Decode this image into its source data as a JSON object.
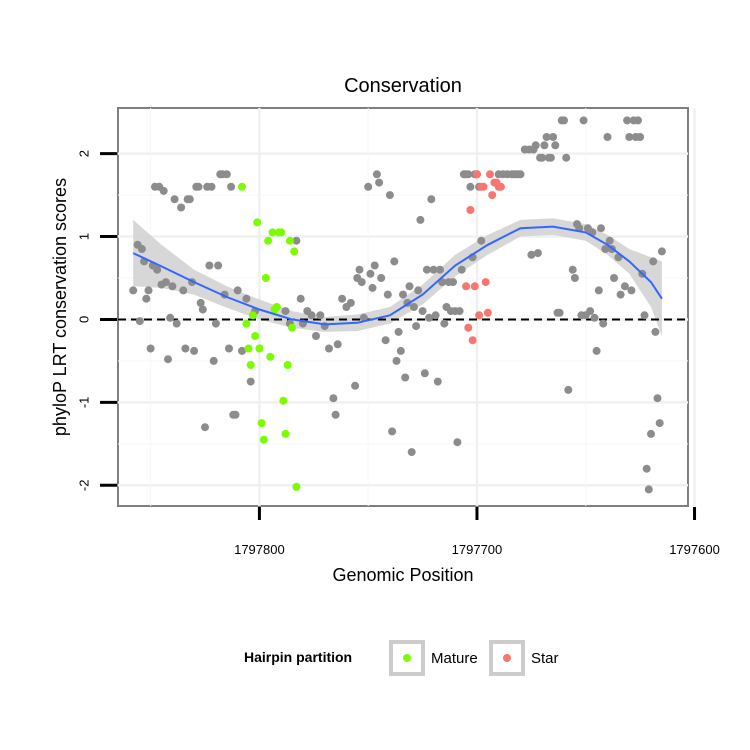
{
  "chart_data": {
    "type": "scatter",
    "title": "Conservation",
    "xlabel": "Genomic Position",
    "ylabel": "phyloP LRT conservation scores",
    "x_reversed": true,
    "xlim": [
      1797865,
      1797603
    ],
    "ylim": [
      -2.25,
      2.55
    ],
    "x_ticks": [
      1797800,
      1797700,
      1797600
    ],
    "x_tick_labels": [
      "1797800",
      "1797700",
      "1797600"
    ],
    "y_ticks": [
      -2,
      -1,
      0,
      1,
      2
    ],
    "y_tick_labels": [
      "-2",
      "-1",
      "0",
      "1",
      "2"
    ],
    "grid": true,
    "reference_line": {
      "y": 0,
      "style": "dashed"
    },
    "legend": {
      "title": "Hairpin partition",
      "placement": "bottom",
      "entries": [
        {
          "label": "Mature",
          "color": "#7cfc00"
        },
        {
          "label": "Star",
          "color": "#f8766d"
        }
      ]
    },
    "colors": {
      "other": "#8c8c8c",
      "Mature": "#7cfc00",
      "Star": "#f8766d",
      "smooth": "#3366ff",
      "band": "#d3d3d3"
    },
    "series": [
      {
        "name": "",
        "points": [
          [
            1797858,
            0.35
          ],
          [
            1797856,
            0.9
          ],
          [
            1797855,
            -0.02
          ],
          [
            1797854,
            0.85
          ],
          [
            1797853,
            0.7
          ],
          [
            1797852,
            0.25
          ],
          [
            1797851,
            0.35
          ],
          [
            1797850,
            -0.35
          ],
          [
            1797849,
            0.65
          ],
          [
            1797848,
            1.6
          ],
          [
            1797847,
            0.6
          ],
          [
            1797846,
            1.6
          ],
          [
            1797845,
            0.42
          ],
          [
            1797844,
            1.55
          ],
          [
            1797843,
            0.45
          ],
          [
            1797842,
            -0.48
          ],
          [
            1797841,
            0.02
          ],
          [
            1797840,
            0.4
          ],
          [
            1797839,
            1.45
          ],
          [
            1797838,
            -0.05
          ],
          [
            1797836,
            1.35
          ],
          [
            1797835,
            0.35
          ],
          [
            1797834,
            -0.35
          ],
          [
            1797833,
            1.45
          ],
          [
            1797832,
            1.45
          ],
          [
            1797831,
            0.45
          ],
          [
            1797830,
            -0.38
          ],
          [
            1797829,
            1.6
          ],
          [
            1797828,
            1.6
          ],
          [
            1797827,
            0.2
          ],
          [
            1797826,
            0.12
          ],
          [
            1797825,
            -1.3
          ],
          [
            1797824,
            1.6
          ],
          [
            1797823,
            0.65
          ],
          [
            1797822,
            1.6
          ],
          [
            1797821,
            -0.5
          ],
          [
            1797820,
            -0.05
          ],
          [
            1797819,
            0.65
          ],
          [
            1797818,
            1.75
          ],
          [
            1797817,
            1.75
          ],
          [
            1797816,
            0.3
          ],
          [
            1797815,
            1.75
          ],
          [
            1797814,
            -0.35
          ],
          [
            1797813,
            1.6
          ],
          [
            1797812,
            -1.15
          ],
          [
            1797811,
            -1.15
          ],
          [
            1797810,
            0.35
          ],
          [
            1797808,
            -0.38
          ],
          [
            1797806,
            0.25
          ],
          [
            1797804,
            -0.75
          ],
          [
            1797802,
            0.1
          ],
          [
            1797788,
            0.1
          ],
          [
            1797786,
            -0.05
          ],
          [
            1797783,
            0.95
          ],
          [
            1797781,
            0.25
          ],
          [
            1797780,
            -0.05
          ],
          [
            1797778,
            0.1
          ],
          [
            1797776,
            0.05
          ],
          [
            1797774,
            -0.2
          ],
          [
            1797772,
            0.05
          ],
          [
            1797770,
            -0.08
          ],
          [
            1797768,
            -0.35
          ],
          [
            1797766,
            -0.95
          ],
          [
            1797765,
            -1.15
          ],
          [
            1797764,
            -0.3
          ],
          [
            1797762,
            0.25
          ],
          [
            1797760,
            0.15
          ],
          [
            1797758,
            0.2
          ],
          [
            1797756,
            -0.8
          ],
          [
            1797755,
            0.5
          ],
          [
            1797754,
            0.6
          ],
          [
            1797753,
            0.45
          ],
          [
            1797752,
            0.02
          ],
          [
            1797750,
            1.6
          ],
          [
            1797749,
            0.55
          ],
          [
            1797748,
            0.38
          ],
          [
            1797747,
            0.65
          ],
          [
            1797746,
            1.75
          ],
          [
            1797745,
            1.65
          ],
          [
            1797744,
            0.5
          ],
          [
            1797742,
            -0.25
          ],
          [
            1797741,
            0.3
          ],
          [
            1797740,
            1.5
          ],
          [
            1797739,
            -1.35
          ],
          [
            1797738,
            0.7
          ],
          [
            1797737,
            -0.5
          ],
          [
            1797736,
            -0.15
          ],
          [
            1797735,
            -0.38
          ],
          [
            1797734,
            0.3
          ],
          [
            1797733,
            -0.7
          ],
          [
            1797732,
            0.2
          ],
          [
            1797731,
            0.4
          ],
          [
            1797730,
            -1.6
          ],
          [
            1797729,
            0.15
          ],
          [
            1797728,
            -0.08
          ],
          [
            1797727,
            0.35
          ],
          [
            1797726,
            1.2
          ],
          [
            1797725,
            0.1
          ],
          [
            1797724,
            -0.65
          ],
          [
            1797723,
            0.6
          ],
          [
            1797722,
            0.02
          ],
          [
            1797721,
            1.45
          ],
          [
            1797720,
            0.6
          ],
          [
            1797719,
            0.05
          ],
          [
            1797718,
            -0.75
          ],
          [
            1797717,
            0.6
          ],
          [
            1797716,
            0.45
          ],
          [
            1797715,
            -0.05
          ],
          [
            1797714,
            0.15
          ],
          [
            1797713,
            0.45
          ],
          [
            1797712,
            0.1
          ],
          [
            1797711,
            0.45
          ],
          [
            1797710,
            0.1
          ],
          [
            1797709,
            -1.48
          ],
          [
            1797708,
            0.1
          ],
          [
            1797707,
            0.6
          ],
          [
            1797706,
            1.75
          ],
          [
            1797705,
            1.75
          ],
          [
            1797704,
            1.75
          ],
          [
            1797703,
            1.6
          ],
          [
            1797702,
            0.75
          ],
          [
            1797701,
            1.75
          ],
          [
            1797700,
            1.75
          ],
          [
            1797699,
            1.6
          ],
          [
            1797698,
            0.95
          ],
          [
            1797690,
            1.75
          ],
          [
            1797688,
            1.75
          ],
          [
            1797686,
            1.75
          ],
          [
            1797684,
            1.75
          ],
          [
            1797683,
            1.75
          ],
          [
            1797682,
            1.75
          ],
          [
            1797681,
            1.75
          ],
          [
            1797680,
            1.75
          ],
          [
            1797678,
            2.05
          ],
          [
            1797676,
            2.05
          ],
          [
            1797675,
            0.78
          ],
          [
            1797674,
            2.05
          ],
          [
            1797673,
            2.1
          ],
          [
            1797672,
            0.8
          ],
          [
            1797671,
            1.95
          ],
          [
            1797670,
            1.95
          ],
          [
            1797669,
            2.1
          ],
          [
            1797668,
            2.2
          ],
          [
            1797667,
            1.95
          ],
          [
            1797666,
            1.95
          ],
          [
            1797665,
            2.2
          ],
          [
            1797664,
            2.1
          ],
          [
            1797663,
            0.08
          ],
          [
            1797662,
            0.08
          ],
          [
            1797661,
            2.4
          ],
          [
            1797660,
            2.4
          ],
          [
            1797659,
            1.95
          ],
          [
            1797658,
            -0.85
          ],
          [
            1797656,
            0.6
          ],
          [
            1797655,
            0.5
          ],
          [
            1797654,
            1.15
          ],
          [
            1797653,
            1.1
          ],
          [
            1797652,
            0.05
          ],
          [
            1797651,
            2.4
          ],
          [
            1797650,
            0.05
          ],
          [
            1797649,
            1.1
          ],
          [
            1797648,
            0.1
          ],
          [
            1797647,
            1.05
          ],
          [
            1797646,
            0.02
          ],
          [
            1797645,
            -0.38
          ],
          [
            1797644,
            0.35
          ],
          [
            1797643,
            1.1
          ],
          [
            1797642,
            -0.05
          ],
          [
            1797641,
            0.85
          ],
          [
            1797640,
            2.2
          ],
          [
            1797639,
            0.95
          ],
          [
            1797638,
            0.85
          ],
          [
            1797637,
            0.5
          ],
          [
            1797635,
            0.75
          ],
          [
            1797634,
            0.3
          ],
          [
            1797632,
            0.4
          ],
          [
            1797631,
            2.4
          ],
          [
            1797630,
            2.2
          ],
          [
            1797629,
            0.35
          ],
          [
            1797628,
            2.4
          ],
          [
            1797627,
            2.2
          ],
          [
            1797626,
            2.4
          ],
          [
            1797625,
            2.2
          ],
          [
            1797624,
            0.55
          ],
          [
            1797623,
            0.05
          ],
          [
            1797622,
            -1.8
          ],
          [
            1797621,
            -2.05
          ],
          [
            1797620,
            -1.38
          ],
          [
            1797619,
            0.7
          ],
          [
            1797618,
            -0.15
          ],
          [
            1797617,
            -0.95
          ],
          [
            1797616,
            -1.25
          ],
          [
            1797615,
            0.82
          ]
        ]
      },
      {
        "name": "Mature",
        "points": [
          [
            1797808,
            1.6
          ],
          [
            1797806,
            -0.05
          ],
          [
            1797805,
            -0.35
          ],
          [
            1797804,
            -0.55
          ],
          [
            1797803,
            0.05
          ],
          [
            1797802,
            -0.2
          ],
          [
            1797801,
            1.17
          ],
          [
            1797800,
            -0.35
          ],
          [
            1797799,
            -1.25
          ],
          [
            1797798,
            -1.45
          ],
          [
            1797797,
            0.5
          ],
          [
            1797796,
            0.95
          ],
          [
            1797795,
            -0.45
          ],
          [
            1797794,
            1.05
          ],
          [
            1797793,
            0.12
          ],
          [
            1797792,
            0.15
          ],
          [
            1797791,
            1.05
          ],
          [
            1797790,
            1.05
          ],
          [
            1797789,
            -0.98
          ],
          [
            1797788,
            -1.38
          ],
          [
            1797787,
            -0.55
          ],
          [
            1797786,
            0.95
          ],
          [
            1797785,
            -0.1
          ],
          [
            1797784,
            0.82
          ],
          [
            1797783,
            -2.02
          ]
        ]
      },
      {
        "name": "Star",
        "points": [
          [
            1797705,
            0.4
          ],
          [
            1797704,
            -0.1
          ],
          [
            1797703,
            1.32
          ],
          [
            1797702,
            -0.25
          ],
          [
            1797701,
            0.4
          ],
          [
            1797700,
            1.75
          ],
          [
            1797699,
            0.05
          ],
          [
            1797698,
            1.6
          ],
          [
            1797697,
            1.6
          ],
          [
            1797696,
            0.45
          ],
          [
            1797695,
            0.08
          ],
          [
            1797694,
            1.75
          ],
          [
            1797693,
            1.5
          ],
          [
            1797692,
            1.65
          ],
          [
            1797691,
            1.65
          ],
          [
            1797690,
            1.6
          ],
          [
            1797689,
            1.6
          ]
        ]
      }
    ],
    "smooth": {
      "x": [
        1797858,
        1797845,
        1797830,
        1797815,
        1797800,
        1797785,
        1797770,
        1797755,
        1797740,
        1797725,
        1797710,
        1797695,
        1797680,
        1797665,
        1797650,
        1797640,
        1797630,
        1797620,
        1797615
      ],
      "y": [
        0.8,
        0.64,
        0.45,
        0.27,
        0.12,
        0.0,
        -0.06,
        -0.04,
        0.05,
        0.3,
        0.65,
        0.9,
        1.1,
        1.12,
        1.05,
        0.9,
        0.7,
        0.45,
        0.25
      ],
      "lo": [
        0.4,
        0.38,
        0.3,
        0.14,
        0.0,
        -0.1,
        -0.15,
        -0.14,
        -0.05,
        0.18,
        0.52,
        0.78,
        1.0,
        1.02,
        0.95,
        0.78,
        0.55,
        0.15,
        -0.2
      ],
      "hi": [
        1.2,
        0.9,
        0.6,
        0.4,
        0.24,
        0.1,
        0.03,
        0.06,
        0.15,
        0.42,
        0.78,
        1.02,
        1.2,
        1.22,
        1.15,
        1.02,
        0.85,
        0.75,
        0.7
      ]
    }
  }
}
